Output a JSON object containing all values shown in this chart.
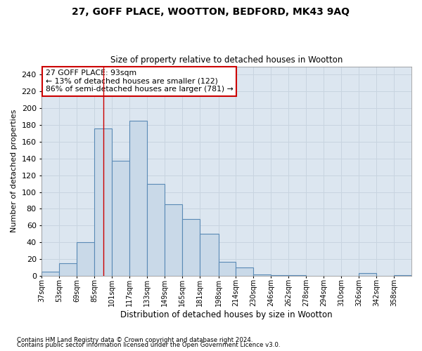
{
  "title1": "27, GOFF PLACE, WOOTTON, BEDFORD, MK43 9AQ",
  "title2": "Size of property relative to detached houses in Wootton",
  "xlabel": "Distribution of detached houses by size in Wootton",
  "ylabel": "Number of detached properties",
  "bin_labels": [
    "37sqm",
    "53sqm",
    "69sqm",
    "85sqm",
    "101sqm",
    "117sqm",
    "133sqm",
    "149sqm",
    "165sqm",
    "181sqm",
    "198sqm",
    "214sqm",
    "230sqm",
    "246sqm",
    "262sqm",
    "278sqm",
    "294sqm",
    "310sqm",
    "326sqm",
    "342sqm",
    "358sqm"
  ],
  "bin_edges": [
    37,
    53,
    69,
    85,
    101,
    117,
    133,
    149,
    165,
    181,
    198,
    214,
    230,
    246,
    262,
    278,
    294,
    310,
    326,
    342,
    358,
    374
  ],
  "bar_heights": [
    5,
    15,
    40,
    176,
    137,
    185,
    110,
    85,
    68,
    50,
    17,
    10,
    2,
    1,
    1,
    0,
    0,
    0,
    3,
    0,
    1
  ],
  "bar_fill_color": "#c9d9e8",
  "bar_edge_color": "#5a8ab5",
  "grid_color": "#c8d4e0",
  "annotation_line1": "27 GOFF PLACE: 93sqm",
  "annotation_line2": "← 13% of detached houses are smaller (122)",
  "annotation_line3": "86% of semi-detached houses are larger (781) →",
  "annotation_box_color": "#ffffff",
  "annotation_box_edge": "#cc0000",
  "red_line_x": 93,
  "ylim": [
    0,
    250
  ],
  "yticks": [
    0,
    20,
    40,
    60,
    80,
    100,
    120,
    140,
    160,
    180,
    200,
    220,
    240
  ],
  "footnote1": "Contains HM Land Registry data © Crown copyright and database right 2024.",
  "footnote2": "Contains public sector information licensed under the Open Government Licence v3.0.",
  "bg_color": "#dce6f0",
  "fig_bg_color": "#ffffff"
}
